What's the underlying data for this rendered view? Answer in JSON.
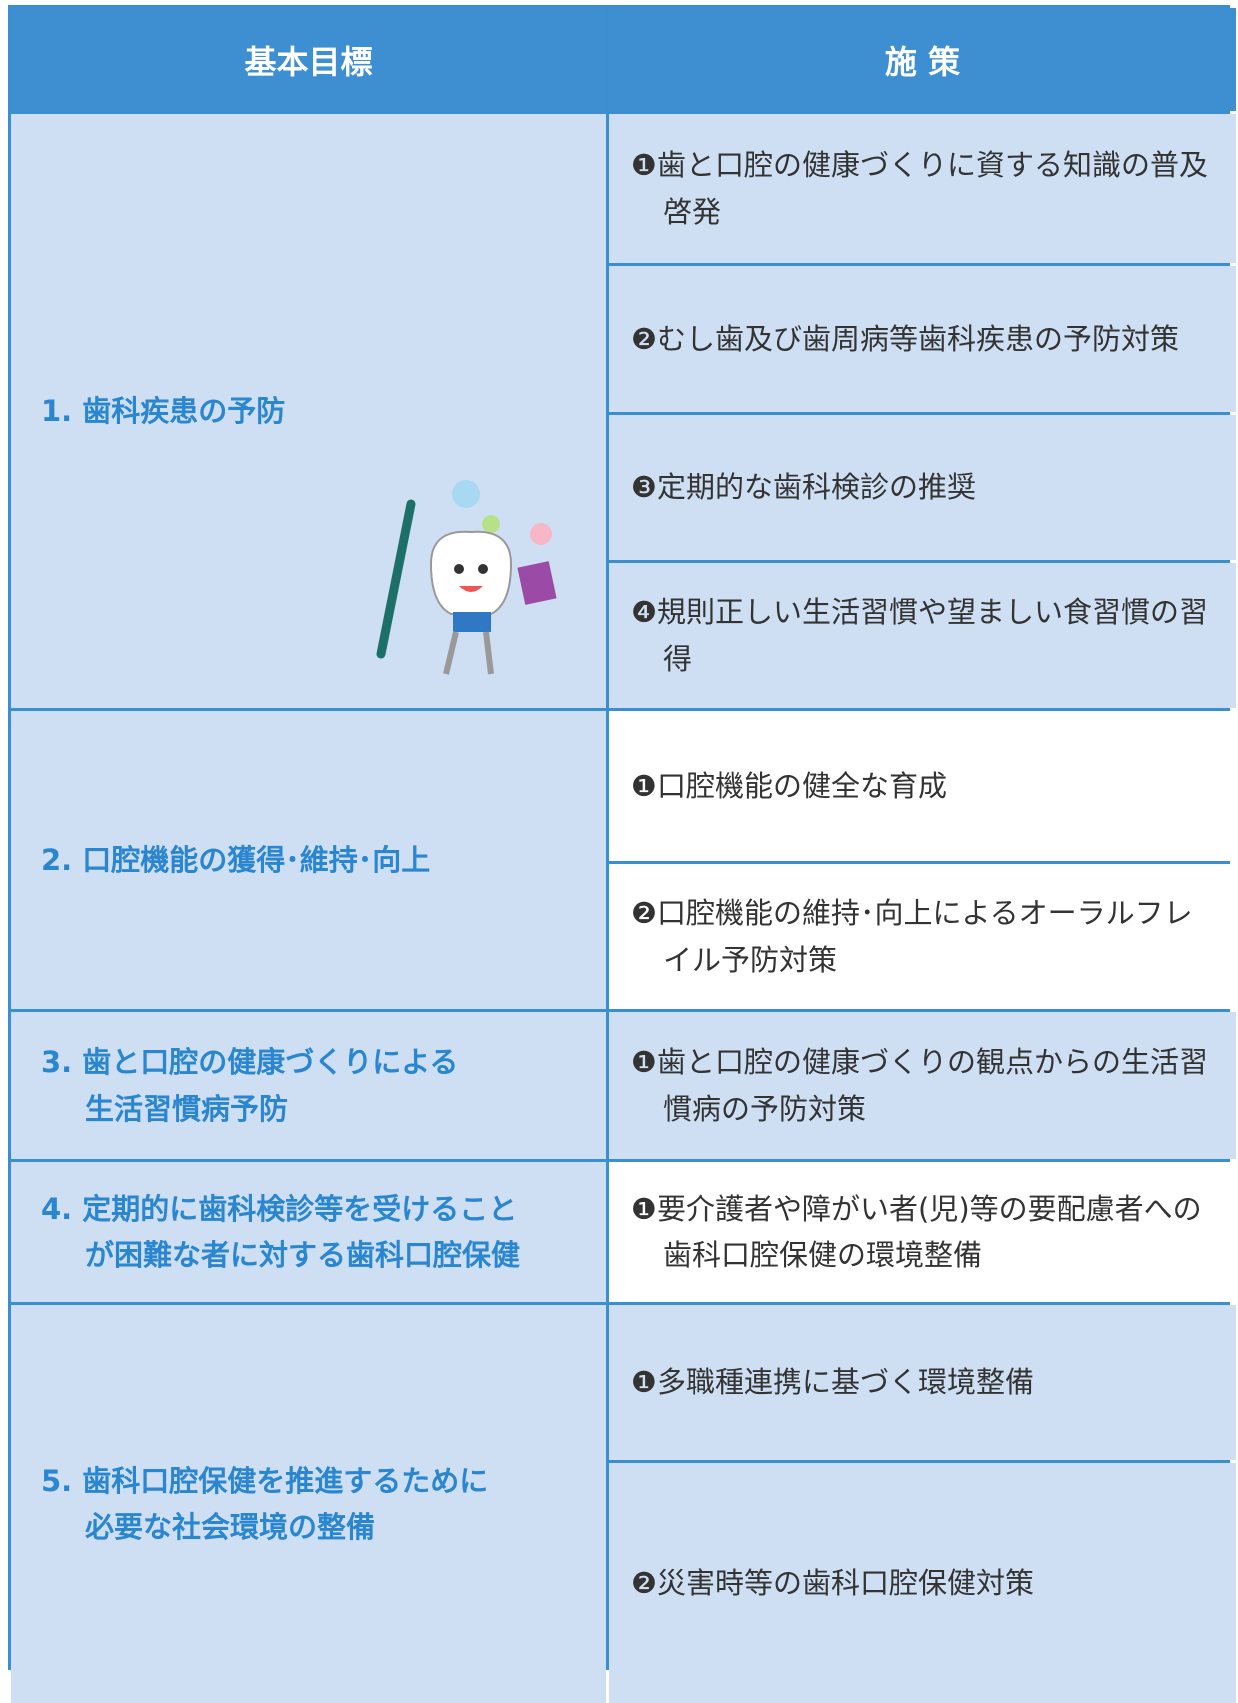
{
  "header": {
    "goal": "基本目標",
    "measure": "施 策"
  },
  "goals": [
    {
      "label": [
        "1. 歯科疾患の予防"
      ],
      "measures": [
        "❶歯と口腔の健康づくりに資する知識の普及啓発",
        "❷むし歯及び歯周病等歯科疾患の予防対策",
        "❸定期的な歯科検診の推奨",
        "❹規則正しい生活習慣や望ましい食習慣の習得"
      ]
    },
    {
      "label": [
        "2. 口腔機能の獲得･維持･向上"
      ],
      "measures": [
        "❶口腔機能の健全な育成",
        "❷口腔機能の維持･向上によるオーラルフレイル予防対策"
      ]
    },
    {
      "label": [
        "3. 歯と口腔の健康づくりによる",
        "生活習慣病予防"
      ],
      "measures": [
        "❶歯と口腔の健康づくりの観点からの生活習慣病の予防対策"
      ]
    },
    {
      "label": [
        "4. 定期的に歯科検診等を受けること",
        "が困難な者に対する歯科口腔保健"
      ],
      "measures": [
        "❶要介護者や障がい者(児)等の要配慮者への歯科口腔保健の環境整備"
      ]
    },
    {
      "label": [
        "5. 歯科口腔保健を推進するために",
        "必要な社会環境の整備"
      ],
      "measures": [
        "❶多職種連携に基づく環境整備",
        "❷災害時等の歯科口腔保健対策"
      ]
    }
  ]
}
